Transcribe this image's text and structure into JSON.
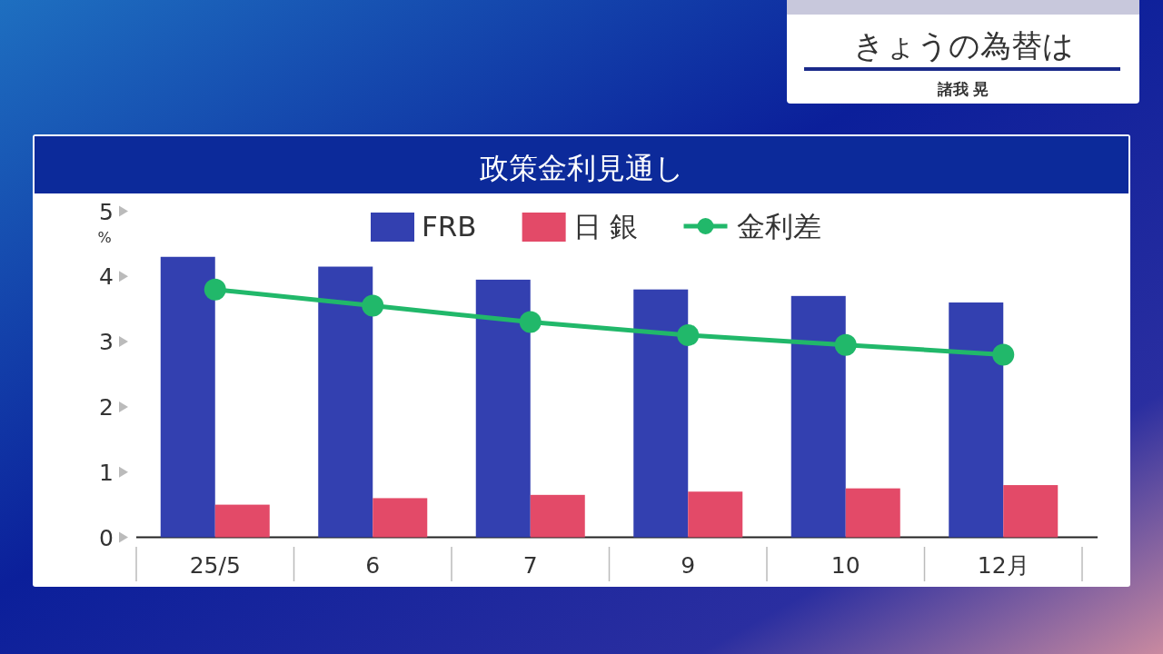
{
  "chart_data": {
    "type": "bar",
    "title": "政策金利見通し",
    "ylabel": "%",
    "categories": [
      "25/5",
      "6",
      "7",
      "9",
      "10",
      "12月"
    ],
    "series": [
      {
        "name": "FRB",
        "color": "#3340b0",
        "values": [
          4.3,
          4.15,
          3.95,
          3.8,
          3.7,
          3.6
        ]
      },
      {
        "name": "日 銀",
        "color": "#e34a68",
        "values": [
          0.5,
          0.6,
          0.65,
          0.7,
          0.75,
          0.8
        ]
      },
      {
        "name": "金利差",
        "type": "line",
        "color": "#21b86a",
        "marker": "circle",
        "values": [
          3.8,
          3.55,
          3.3,
          3.1,
          2.95,
          2.8
        ]
      }
    ],
    "ylim": [
      0,
      5
    ],
    "yticks": [
      0,
      1,
      2,
      3,
      4,
      5
    ],
    "grid": false,
    "legend": "top",
    "annotations": [
      "きょうの為替は",
      "諸我 晃"
    ]
  }
}
